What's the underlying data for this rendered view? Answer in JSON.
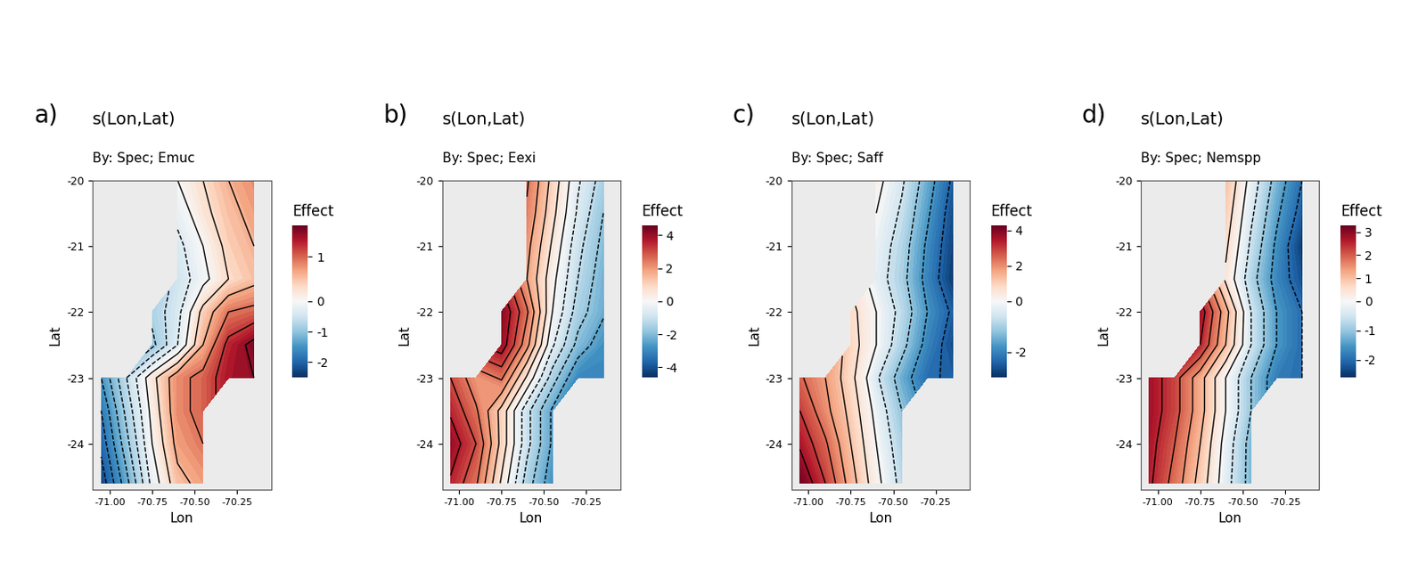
{
  "chart_data": [
    {
      "type": "heatmap",
      "panel": "a)",
      "title": "s(Lon,Lat)",
      "subtitle": "By: Spec; Emuc",
      "x_label": "Lon",
      "y_label": "Lat",
      "xlim": [
        -71.1,
        -70.05
      ],
      "ylim": [
        -24.7,
        -20
      ],
      "xticks": [
        {
          "value": -71.0,
          "label": "-71.00"
        },
        {
          "value": -70.75,
          "label": "-70.75"
        },
        {
          "value": -70.5,
          "label": "-70.50"
        },
        {
          "value": -70.25,
          "label": "-70.25"
        }
      ],
      "yticks": [
        -20,
        -21,
        -22,
        -23,
        -24
      ],
      "x": [
        -71.05,
        -70.9,
        -70.75,
        -70.6,
        -70.45,
        -70.3,
        -70.15
      ],
      "y": [
        -20.0,
        -20.5,
        -21.0,
        -21.5,
        -22.0,
        -22.5,
        -23.0,
        -23.5,
        -24.0,
        -24.6
      ],
      "cells": [
        [
          null,
          null,
          null,
          0.0,
          0.3,
          0.6,
          0.8
        ],
        [
          null,
          null,
          null,
          -0.2,
          0.2,
          0.5,
          0.7
        ],
        [
          null,
          null,
          null,
          -0.4,
          0.0,
          0.4,
          0.6
        ],
        [
          null,
          null,
          null,
          -0.5,
          -0.1,
          0.3,
          0.5
        ],
        [
          null,
          null,
          -0.8,
          -0.4,
          0.4,
          0.9,
          1.0
        ],
        [
          null,
          null,
          -1.0,
          -0.3,
          0.6,
          1.3,
          1.6
        ],
        [
          -1.5,
          -0.6,
          0.2,
          0.8,
          1.0,
          1.4,
          1.5
        ],
        [
          -1.8,
          -0.8,
          0.1,
          0.8,
          1.0,
          null,
          null
        ],
        [
          -2.0,
          -1.0,
          0.0,
          0.7,
          0.9,
          null,
          null
        ],
        [
          -2.3,
          -1.3,
          -0.2,
          0.5,
          0.7,
          null,
          null
        ]
      ],
      "colorbar_label": "Effect",
      "colorbar_range": [
        -2.5,
        1.7
      ],
      "colorbar_ticks": [
        -2,
        -1,
        0,
        1
      ]
    },
    {
      "type": "heatmap",
      "panel": "b)",
      "title": "s(Lon,Lat)",
      "subtitle": "By: Spec; Eexi",
      "x_label": "Lon",
      "y_label": "Lat",
      "xlim": [
        -71.1,
        -70.05
      ],
      "ylim": [
        -24.7,
        -20
      ],
      "xticks": [
        {
          "value": -71.0,
          "label": "-71.00"
        },
        {
          "value": -70.75,
          "label": "-70.75"
        },
        {
          "value": -70.5,
          "label": "-70.50"
        },
        {
          "value": -70.25,
          "label": "-70.25"
        }
      ],
      "yticks": [
        -20,
        -21,
        -22,
        -23,
        -24
      ],
      "x": [
        -71.05,
        -70.9,
        -70.75,
        -70.6,
        -70.45,
        -70.3,
        -70.15
      ],
      "y": [
        -20.0,
        -20.5,
        -21.0,
        -21.5,
        -22.0,
        -22.5,
        -23.0,
        -23.5,
        -24.0,
        -24.6
      ],
      "cells": [
        [
          null,
          null,
          null,
          2.5,
          1.0,
          -0.5,
          -1.5
        ],
        [
          null,
          null,
          null,
          2.3,
          0.8,
          -0.7,
          -1.8
        ],
        [
          null,
          null,
          null,
          2.0,
          0.5,
          -1.0,
          -2.0
        ],
        [
          null,
          null,
          null,
          1.8,
          0.2,
          -1.2,
          -2.2
        ],
        [
          null,
          null,
          4.2,
          2.5,
          0.0,
          -1.5,
          -2.3
        ],
        [
          null,
          null,
          4.0,
          2.0,
          -0.5,
          -2.0,
          -2.8
        ],
        [
          3.0,
          2.0,
          2.5,
          0.5,
          -1.5,
          -3.0,
          -3.0
        ],
        [
          3.5,
          2.5,
          1.0,
          -1.0,
          -2.5,
          null,
          null
        ],
        [
          4.0,
          3.0,
          1.0,
          -1.0,
          -2.5,
          null,
          null
        ],
        [
          3.5,
          2.5,
          0.5,
          -1.5,
          -2.8,
          null,
          null
        ]
      ],
      "colorbar_label": "Effect",
      "colorbar_range": [
        -4.6,
        4.6
      ],
      "colorbar_ticks": [
        -4,
        -2,
        0,
        2,
        4
      ]
    },
    {
      "type": "heatmap",
      "panel": "c)",
      "title": "s(Lon,Lat)",
      "subtitle": "By: Spec; Saff",
      "x_label": "Lon",
      "y_label": "Lat",
      "xlim": [
        -71.1,
        -70.05
      ],
      "ylim": [
        -24.7,
        -20
      ],
      "xticks": [
        {
          "value": -71.0,
          "label": "-71.00"
        },
        {
          "value": -70.75,
          "label": "-70.75"
        },
        {
          "value": -70.5,
          "label": "-70.50"
        },
        {
          "value": -70.25,
          "label": "-70.25"
        }
      ],
      "yticks": [
        -20,
        -21,
        -22,
        -23,
        -24
      ],
      "x": [
        -71.05,
        -70.9,
        -70.75,
        -70.6,
        -70.45,
        -70.3,
        -70.15
      ],
      "y": [
        -20.0,
        -20.5,
        -21.0,
        -21.5,
        -22.0,
        -22.5,
        -23.0,
        -23.5,
        -24.0,
        -24.6
      ],
      "cells": [
        [
          null,
          null,
          null,
          0.2,
          -0.5,
          -1.5,
          -2.5
        ],
        [
          null,
          null,
          null,
          0.0,
          -0.7,
          -1.7,
          -2.7
        ],
        [
          null,
          null,
          null,
          -0.2,
          -0.9,
          -1.9,
          -2.8
        ],
        [
          null,
          null,
          null,
          -0.3,
          -1.0,
          -2.0,
          -2.9
        ],
        [
          null,
          null,
          0.8,
          0.0,
          -0.8,
          -1.8,
          -2.5
        ],
        [
          null,
          null,
          0.9,
          0.0,
          -1.0,
          -2.0,
          -2.7
        ],
        [
          2.5,
          1.8,
          0.8,
          -0.5,
          -1.5,
          -2.3,
          -2.5
        ],
        [
          3.0,
          2.0,
          1.0,
          -0.2,
          -1.2,
          null,
          null
        ],
        [
          3.5,
          2.5,
          1.2,
          0.0,
          -1.0,
          null,
          null
        ],
        [
          4.2,
          3.0,
          1.5,
          0.2,
          -0.8,
          null,
          null
        ]
      ],
      "colorbar_label": "Effect",
      "colorbar_range": [
        -3.0,
        4.3
      ],
      "colorbar_ticks": [
        -2,
        0,
        2,
        4
      ]
    },
    {
      "type": "heatmap",
      "panel": "d)",
      "title": "s(Lon,Lat)",
      "subtitle": "By: Spec; Nemspp",
      "x_label": "Lon",
      "y_label": "Lat",
      "xlim": [
        -71.1,
        -70.05
      ],
      "ylim": [
        -24.7,
        -20
      ],
      "xticks": [
        {
          "value": -71.0,
          "label": "-71.00"
        },
        {
          "value": -70.75,
          "label": "-70.75"
        },
        {
          "value": -70.5,
          "label": "-70.50"
        },
        {
          "value": -70.25,
          "label": "-70.25"
        }
      ],
      "yticks": [
        -20,
        -21,
        -22,
        -23,
        -24
      ],
      "x": [
        -71.05,
        -70.9,
        -70.75,
        -70.6,
        -70.45,
        -70.3,
        -70.15
      ],
      "y": [
        -20.0,
        -20.5,
        -21.0,
        -21.5,
        -22.0,
        -22.5,
        -23.0,
        -23.5,
        -24.0,
        -24.6
      ],
      "cells": [
        [
          null,
          null,
          null,
          1.0,
          -0.2,
          -1.2,
          -2.0
        ],
        [
          null,
          null,
          null,
          0.8,
          -0.4,
          -1.4,
          -2.2
        ],
        [
          null,
          null,
          null,
          0.6,
          -0.6,
          -1.6,
          -2.5
        ],
        [
          null,
          null,
          null,
          0.4,
          -0.8,
          -1.7,
          -2.3
        ],
        [
          null,
          null,
          2.8,
          1.2,
          -0.5,
          -1.5,
          -2.0
        ],
        [
          null,
          null,
          2.5,
          1.0,
          -0.5,
          -1.5,
          -2.0
        ],
        [
          2.8,
          2.2,
          1.2,
          0.0,
          -1.0,
          -1.8,
          -2.0
        ],
        [
          2.8,
          2.2,
          1.2,
          0.0,
          -1.0,
          null,
          null
        ],
        [
          2.7,
          2.0,
          1.0,
          -0.2,
          -1.2,
          null,
          null
        ],
        [
          2.6,
          1.8,
          0.8,
          -0.3,
          -1.2,
          null,
          null
        ]
      ],
      "colorbar_label": "Effect",
      "colorbar_range": [
        -2.6,
        3.3
      ],
      "colorbar_ticks": [
        -2,
        -1,
        0,
        1,
        2,
        3
      ]
    }
  ]
}
